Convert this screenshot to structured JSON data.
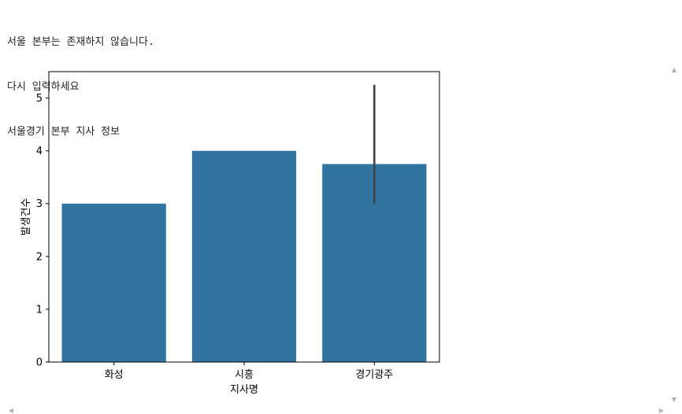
{
  "output": {
    "lines": [
      "서울 본부는 존재하지 않습니다.",
      "다시 입력하세요",
      "서울경기 본부 지사 정보"
    ]
  },
  "chart_data": {
    "type": "bar",
    "categories": [
      "화성",
      "시흥",
      "경기광주"
    ],
    "values": [
      3,
      4,
      3.75
    ],
    "error_bars": [
      null,
      null,
      [
        3.0,
        5.25
      ]
    ],
    "xlabel": "지사명",
    "ylabel": "발생건수",
    "ylim": [
      0,
      5.5
    ],
    "yticks": [
      0,
      1,
      2,
      3,
      4,
      5
    ],
    "bar_color": "#3274a1",
    "error_color": "#424242",
    "grid": false,
    "legend": false
  },
  "scrollbar": {
    "up_icon": "scroll-up-icon",
    "down_icon": "scroll-down-icon",
    "left_icon": "scroll-left-icon",
    "right_icon": "scroll-right-icon"
  }
}
